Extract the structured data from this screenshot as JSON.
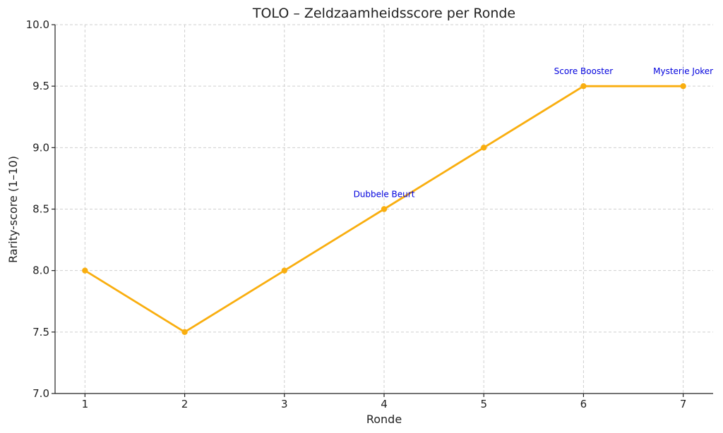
{
  "chart_data": {
    "type": "line",
    "title": "TOLO – Zeldzaamheidsscore per Ronde",
    "xlabel": "Ronde",
    "ylabel": "Rarity-score (1–10)",
    "x": [
      1,
      2,
      3,
      4,
      5,
      6,
      7
    ],
    "xlim": [
      0.7,
      7.3
    ],
    "ylim": [
      7.0,
      10.0
    ],
    "yticks": [
      7.0,
      7.5,
      8.0,
      8.5,
      9.0,
      9.5,
      10.0
    ],
    "ytick_labels": [
      "7.0",
      "7.5",
      "8.0",
      "8.5",
      "9.0",
      "9.5",
      "10.0"
    ],
    "xtick_labels": [
      "1",
      "2",
      "3",
      "4",
      "5",
      "6",
      "7"
    ],
    "grid": true,
    "series": [
      {
        "values": [
          8.0,
          7.5,
          8.0,
          8.5,
          9.0,
          9.5,
          9.5
        ],
        "color": "#f9ae0f"
      }
    ],
    "annotations": [
      {
        "x": 4,
        "y": 8.5,
        "text": "Dubbele Beurt"
      },
      {
        "x": 6,
        "y": 9.5,
        "text": "Score Booster"
      },
      {
        "x": 7,
        "y": 9.5,
        "text": "Mysterie Joker"
      }
    ],
    "annotation_color": "#0000dd"
  }
}
